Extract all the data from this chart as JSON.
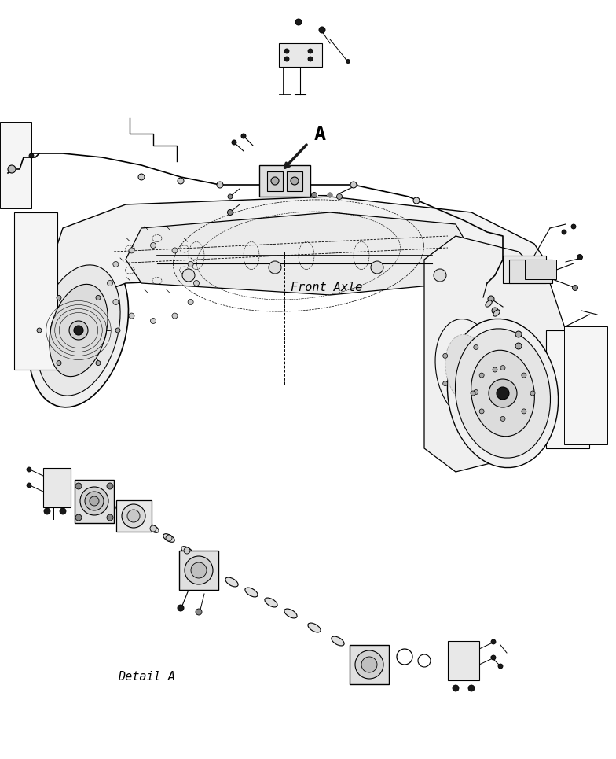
{
  "background_color": "#ffffff",
  "fig_width": 7.84,
  "fig_height": 9.65,
  "dpi": 100,
  "label_front_axle": "Front Axle",
  "label_detail_a": "Detail A",
  "label_a": "A",
  "line_color": "#000000",
  "line_width": 0.8,
  "fill_color": "#ffffff",
  "dark_fill": "#1a1a1a",
  "mid_gray": "#888888",
  "light_gray": "#cccccc"
}
